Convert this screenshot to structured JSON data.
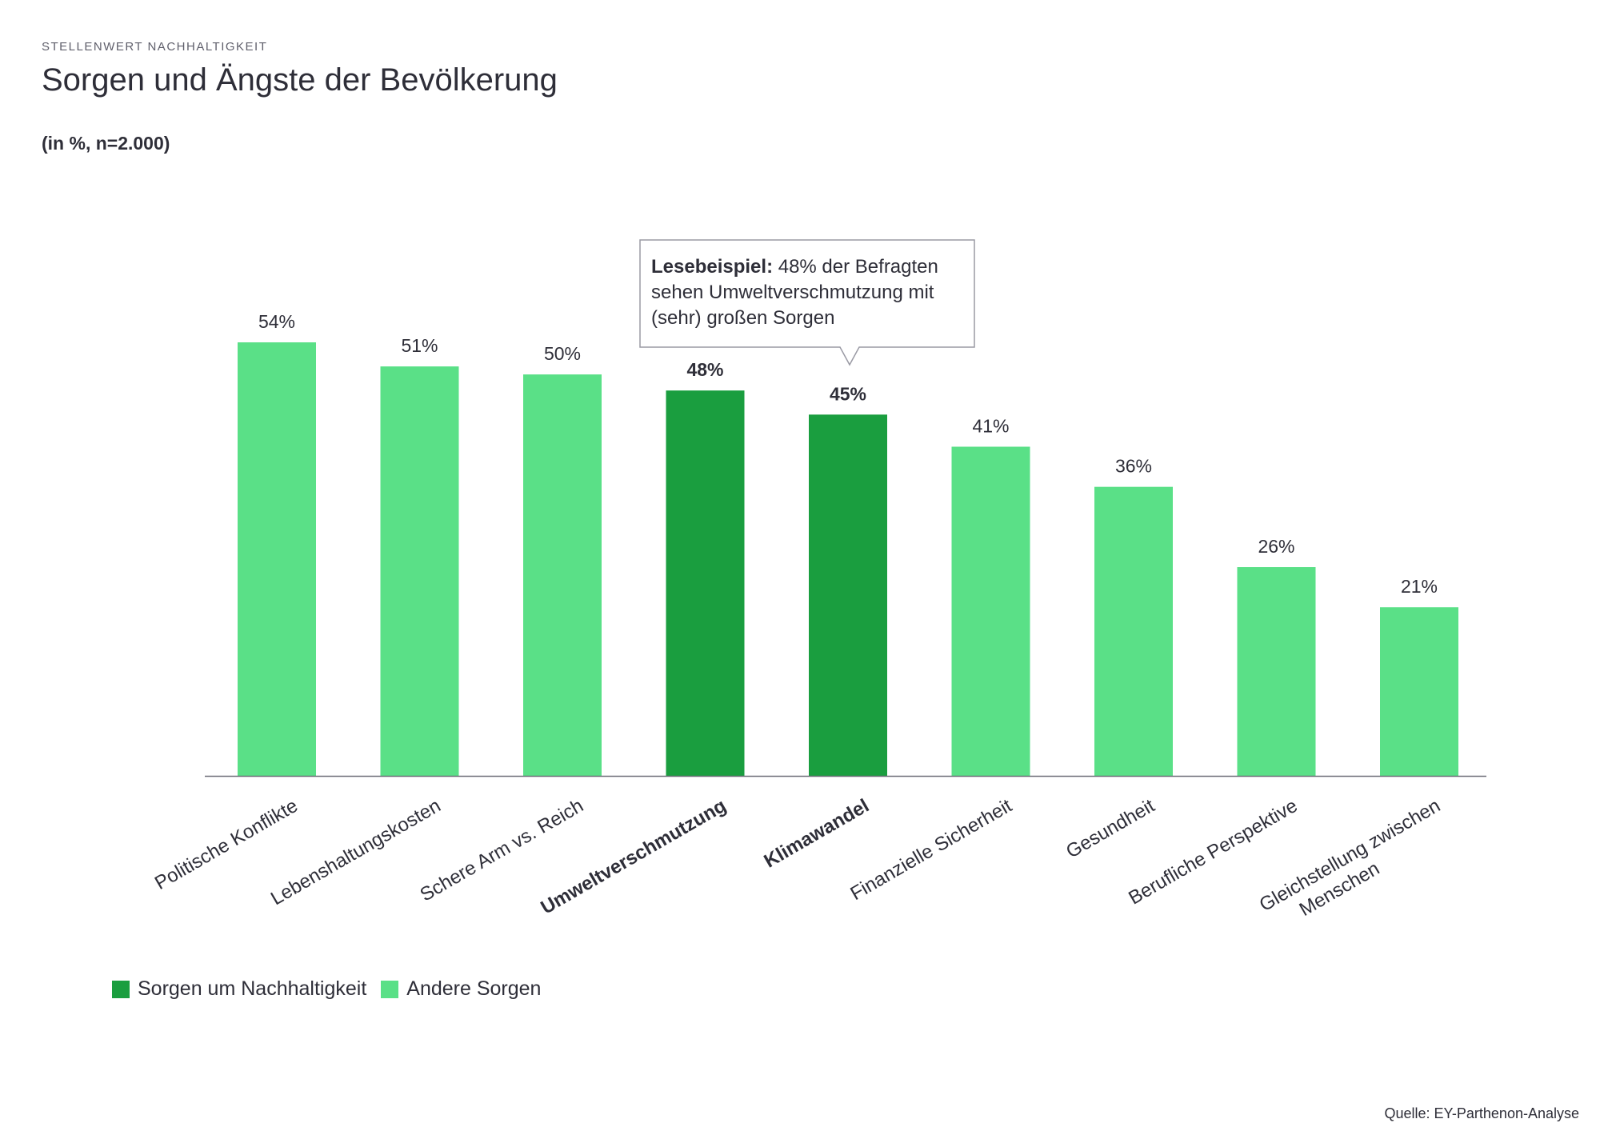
{
  "header": {
    "kicker": "STELLENWERT NACHHALTIGKEIT",
    "title": "Sorgen und Ängste der Bevölkerung",
    "subtitle": "(in %, n=2.000)"
  },
  "callout": {
    "bold": "Lesebeispiel:",
    "text": " 48% der Befragten sehen Umweltverschmutzung mit (sehr) großen Sorgen"
  },
  "legend": [
    {
      "label": "Sorgen um Nachhaltigkeit",
      "color": "#1a9e3f"
    },
    {
      "label": "Andere Sorgen",
      "color": "#5ae087"
    }
  ],
  "source": "Quelle: EY-Parthenon-Analyse",
  "chart_data": {
    "type": "bar",
    "title": "Sorgen und Ängste der Bevölkerung",
    "categories": [
      "Politische Konflikte",
      "Lebenshaltungskosten",
      "Schere Arm vs. Reich",
      "Umweltverschmutzung",
      "Klimawandel",
      "Finanzielle Sicherheit",
      "Gesundheit",
      "Berufliche Perspektive",
      "Gleichstellung zwischen Menschen"
    ],
    "values": [
      54,
      51,
      50,
      48,
      45,
      41,
      36,
      26,
      21
    ],
    "value_labels": [
      "54%",
      "51%",
      "50%",
      "48%",
      "45%",
      "41%",
      "36%",
      "26%",
      "21%"
    ],
    "group": [
      "Andere Sorgen",
      "Andere Sorgen",
      "Andere Sorgen",
      "Sorgen um Nachhaltigkeit",
      "Sorgen um Nachhaltigkeit",
      "Andere Sorgen",
      "Andere Sorgen",
      "Andere Sorgen",
      "Andere Sorgen"
    ],
    "highlighted": [
      false,
      false,
      false,
      true,
      true,
      false,
      false,
      false,
      false
    ],
    "colors": {
      "Sorgen um Nachhaltigkeit": "#1a9e3f",
      "Andere Sorgen": "#5ae087"
    },
    "ylim": [
      0,
      54
    ],
    "xlabel": "",
    "ylabel": "",
    "grid": false,
    "legend_position": "bottom-left"
  }
}
